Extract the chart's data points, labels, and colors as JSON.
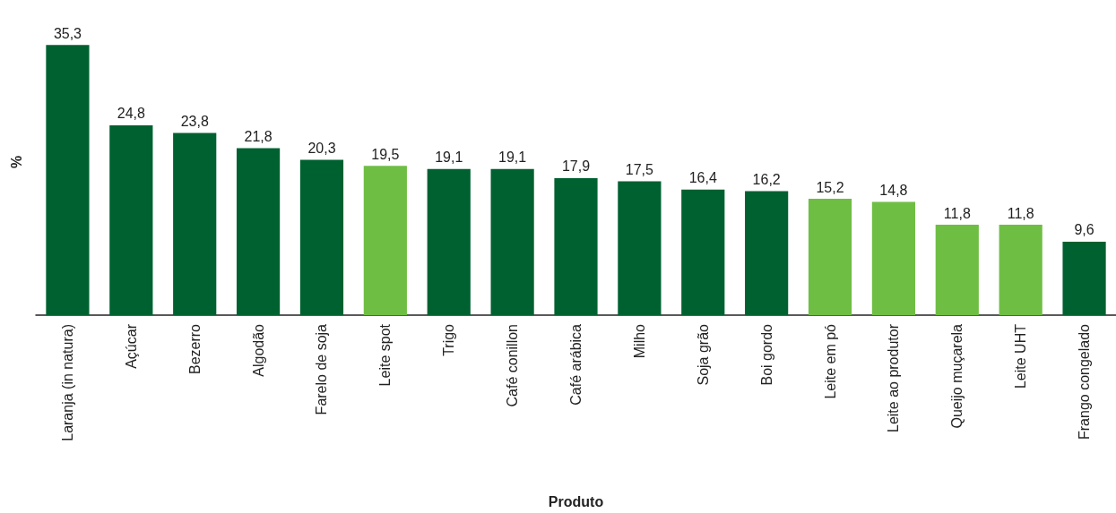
{
  "chart_data": {
    "type": "bar",
    "xlabel": "Produto",
    "ylabel": "%",
    "categories": [
      "Laranja (in natura)",
      "Açúcar",
      "Bezerro",
      "Algodão",
      "Farelo de soja",
      "Leite spot",
      "Trigo",
      "Café conillon",
      "Café arábica",
      "Milho",
      "Soja grão",
      "Boi gordo",
      "Leite em pó",
      "Leite ao produtor",
      "Queijo muçarela",
      "Leite UHT",
      "Frango congelado"
    ],
    "values": [
      35.3,
      24.8,
      23.8,
      21.8,
      20.3,
      19.5,
      19.1,
      19.1,
      17.9,
      17.5,
      16.4,
      16.2,
      15.2,
      14.8,
      11.8,
      11.8,
      9.6
    ],
    "colors": [
      "#006130",
      "#006130",
      "#006130",
      "#006130",
      "#006130",
      "#6fbe44",
      "#006130",
      "#006130",
      "#006130",
      "#006130",
      "#006130",
      "#006130",
      "#6fbe44",
      "#6fbe44",
      "#6fbe44",
      "#6fbe44",
      "#006130"
    ],
    "value_labels": [
      "35,3",
      "24,8",
      "23,8",
      "21,8",
      "20,3",
      "19,5",
      "19,1",
      "19,1",
      "17,9",
      "17,5",
      "16,4",
      "16,2",
      "15,2",
      "14,8",
      "11,8",
      "11,8",
      "9,6"
    ],
    "grid": false
  }
}
